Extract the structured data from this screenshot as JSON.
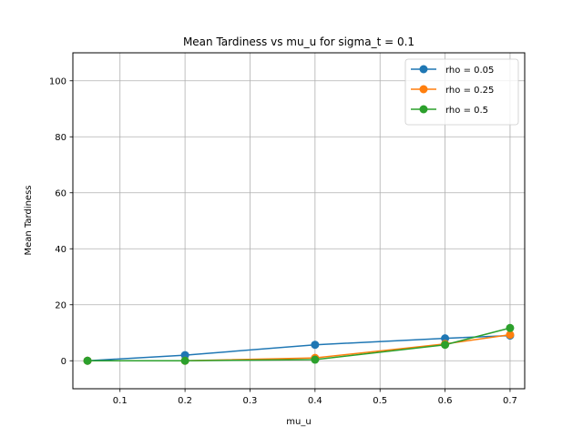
{
  "chart_data": {
    "type": "line",
    "title": "Mean Tardiness vs mu_u for sigma_t = 0.1",
    "xlabel": "mu_u",
    "ylabel": "Mean Tardiness",
    "xlim": [
      0.0275,
      0.7225
    ],
    "ylim": [
      -10,
      110
    ],
    "xticks": [
      "0.1",
      "0.2",
      "0.3",
      "0.4",
      "0.5",
      "0.6",
      "0.7"
    ],
    "yticks": [
      "0",
      "20",
      "40",
      "60",
      "80",
      "100"
    ],
    "grid": true,
    "legend_position": "top-right",
    "x": [
      0.05,
      0.2,
      0.4,
      0.6,
      0.7
    ],
    "series": [
      {
        "name": "rho = 0.05",
        "color": "#1f77b4",
        "values": [
          0.0,
          2.0,
          5.7,
          8.0,
          9.0
        ]
      },
      {
        "name": "rho = 0.25",
        "color": "#ff7f0e",
        "values": [
          0.0,
          0.0,
          1.0,
          6.0,
          9.3
        ]
      },
      {
        "name": "rho = 0.5",
        "color": "#2ca02c",
        "values": [
          0.0,
          0.0,
          0.4,
          5.7,
          11.7
        ]
      }
    ]
  }
}
